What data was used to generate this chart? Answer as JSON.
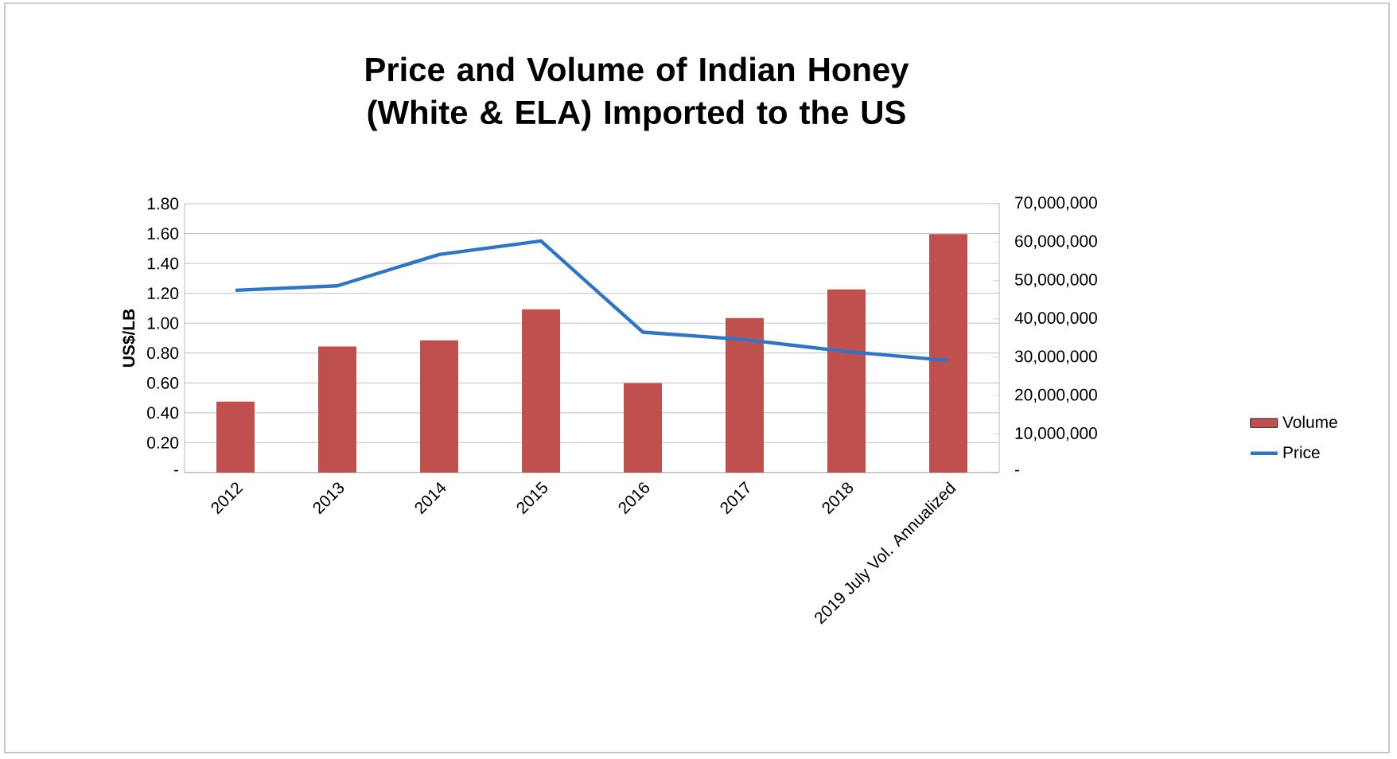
{
  "chart_data": {
    "type": "bar",
    "title": "Price and Volume of Indian Honey (White & ELA) Imported to the US",
    "ylabel": "US$/LB",
    "categories": [
      "2012",
      "2013",
      "2014",
      "2015",
      "2016",
      "2017",
      "2018",
      "2019 July Vol. Annualized"
    ],
    "series": [
      {
        "name": "Volume",
        "axis": "y2",
        "color": "#c0504d",
        "values": [
          18500000,
          32800000,
          34400000,
          42500000,
          23300000,
          40200000,
          47700000,
          62100000
        ]
      },
      {
        "name": "Price",
        "type": "line",
        "color": "#2e75c6",
        "values": [
          1.22,
          1.25,
          1.46,
          1.55,
          0.94,
          0.89,
          0.81,
          0.75
        ]
      }
    ],
    "ylim": [
      0,
      1.8
    ],
    "yticks": [
      {
        "value": 0,
        "label": "-"
      },
      {
        "value": 0.2,
        "label": "0.20"
      },
      {
        "value": 0.4,
        "label": "0.40"
      },
      {
        "value": 0.6,
        "label": "0.60"
      },
      {
        "value": 0.8,
        "label": "0.80"
      },
      {
        "value": 1.0,
        "label": "1.00"
      },
      {
        "value": 1.2,
        "label": "1.20"
      },
      {
        "value": 1.4,
        "label": "1.40"
      },
      {
        "value": 1.6,
        "label": "1.60"
      },
      {
        "value": 1.8,
        "label": "1.80"
      }
    ],
    "y2lim": [
      0,
      70000000
    ],
    "y2ticks": [
      {
        "value": 0,
        "label": "-"
      },
      {
        "value": 10000000,
        "label": "10,000,000"
      },
      {
        "value": 20000000,
        "label": "20,000,000"
      },
      {
        "value": 30000000,
        "label": "30,000,000"
      },
      {
        "value": 40000000,
        "label": "40,000,000"
      },
      {
        "value": 50000000,
        "label": "50,000,000"
      },
      {
        "value": 60000000,
        "label": "60,000,000"
      },
      {
        "value": 70000000,
        "label": "70,000,000"
      }
    ],
    "grid": "y",
    "legend": "right"
  }
}
